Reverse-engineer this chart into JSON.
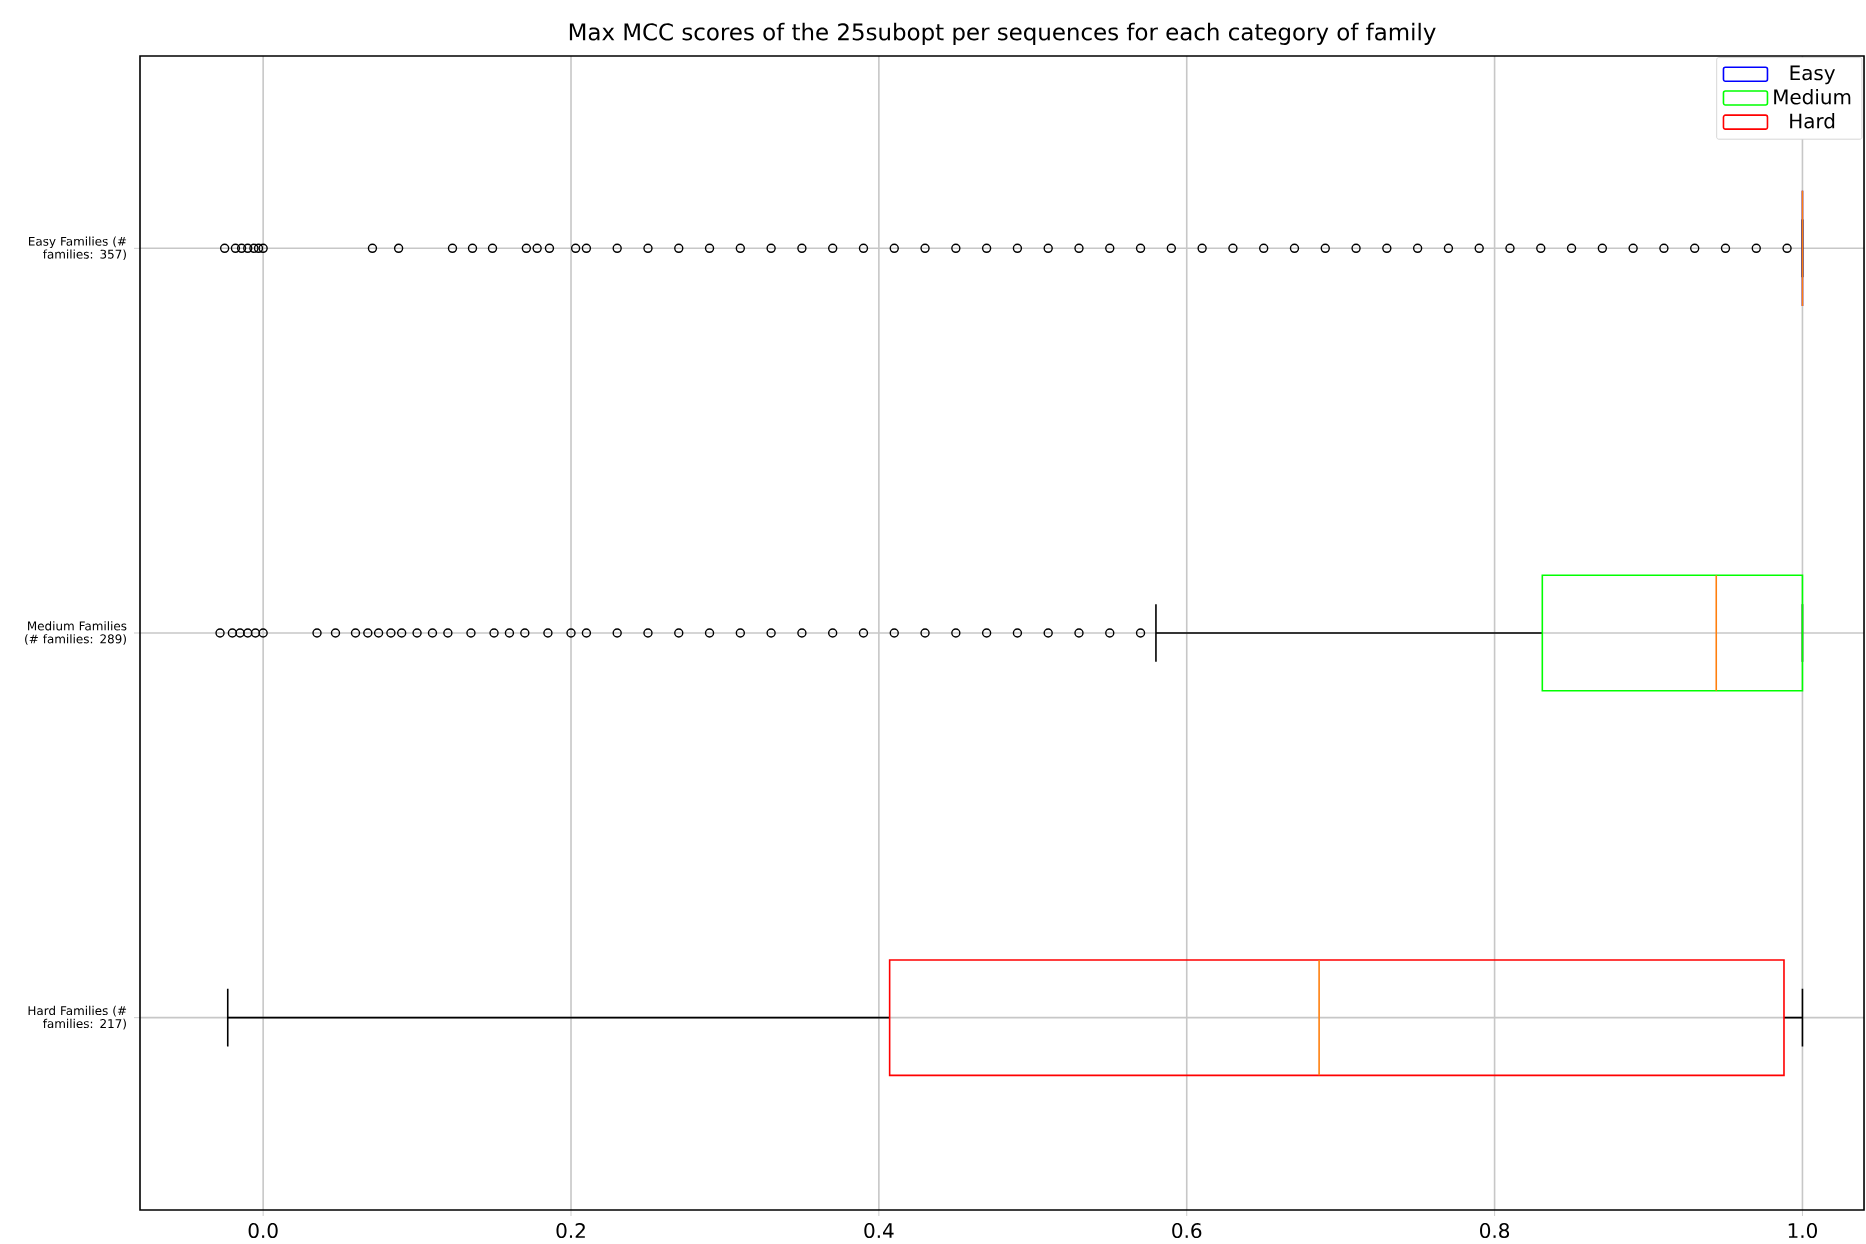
{
  "chart_data": {
    "type": "box",
    "orientation": "horizontal",
    "title": "Max MCC scores of the 25subopt per sequences for each category of family",
    "categories": [
      "Easy Families (# families: 357)",
      "Medium Families (# families: 289)",
      "Hard Families (# families: 217)"
    ],
    "xlim": [
      -0.08,
      1.04
    ],
    "xticks": [
      {
        "value": 0,
        "label": "0.0"
      },
      0.2,
      0.4,
      0.6,
      0.8,
      {
        "value": 1,
        "label": "1.0"
      }
    ],
    "grid": true,
    "legend": "top right",
    "marker": "circle",
    "series": [
      {
        "name": "Easy",
        "color": "#0000ff",
        "boxes": [
          {
            "low": 1.0,
            "q1": 1.0,
            "median": 1.0,
            "q3": 1.0,
            "high": 1.0,
            "outliers": [
              -0.025,
              -0.018,
              -0.014,
              -0.01,
              -0.006,
              -0.003,
              0.0,
              0.071,
              0.088,
              0.123,
              0.136,
              0.149,
              0.171,
              0.178,
              0.186,
              0.203,
              0.21,
              0.23,
              0.25,
              0.27,
              0.29,
              0.31,
              0.33,
              0.35,
              0.37,
              0.39,
              0.41,
              0.43,
              0.45,
              0.47,
              0.49,
              0.51,
              0.53,
              0.55,
              0.57,
              0.59,
              0.61,
              0.63,
              0.65,
              0.67,
              0.69,
              0.71,
              0.73,
              0.75,
              0.77,
              0.79,
              0.81,
              0.83,
              0.85,
              0.87,
              0.89,
              0.91,
              0.93,
              0.95,
              0.97,
              0.99
            ]
          },
          null,
          null
        ]
      },
      {
        "name": "Medium",
        "color": "#00ff00",
        "boxes": [
          null,
          {
            "low": 0.58,
            "q1": 0.831,
            "median": 0.944,
            "q3": 1.0,
            "high": 1.0,
            "outliers": [
              -0.028,
              -0.02,
              -0.015,
              -0.01,
              -0.005,
              0.0,
              0.035,
              0.047,
              0.06,
              0.068,
              0.075,
              0.083,
              0.09,
              0.1,
              0.11,
              0.12,
              0.135,
              0.15,
              0.16,
              0.17,
              0.185,
              0.2,
              0.21,
              0.23,
              0.25,
              0.27,
              0.29,
              0.31,
              0.33,
              0.35,
              0.37,
              0.39,
              0.41,
              0.43,
              0.45,
              0.47,
              0.49,
              0.51,
              0.53,
              0.55,
              0.57
            ]
          },
          null
        ]
      },
      {
        "name": "Hard",
        "color": "#ff0000",
        "boxes": [
          null,
          null,
          {
            "low": -0.023,
            "q1": 0.407,
            "median": 0.686,
            "q3": 0.988,
            "high": 1.0
          }
        ]
      }
    ]
  }
}
